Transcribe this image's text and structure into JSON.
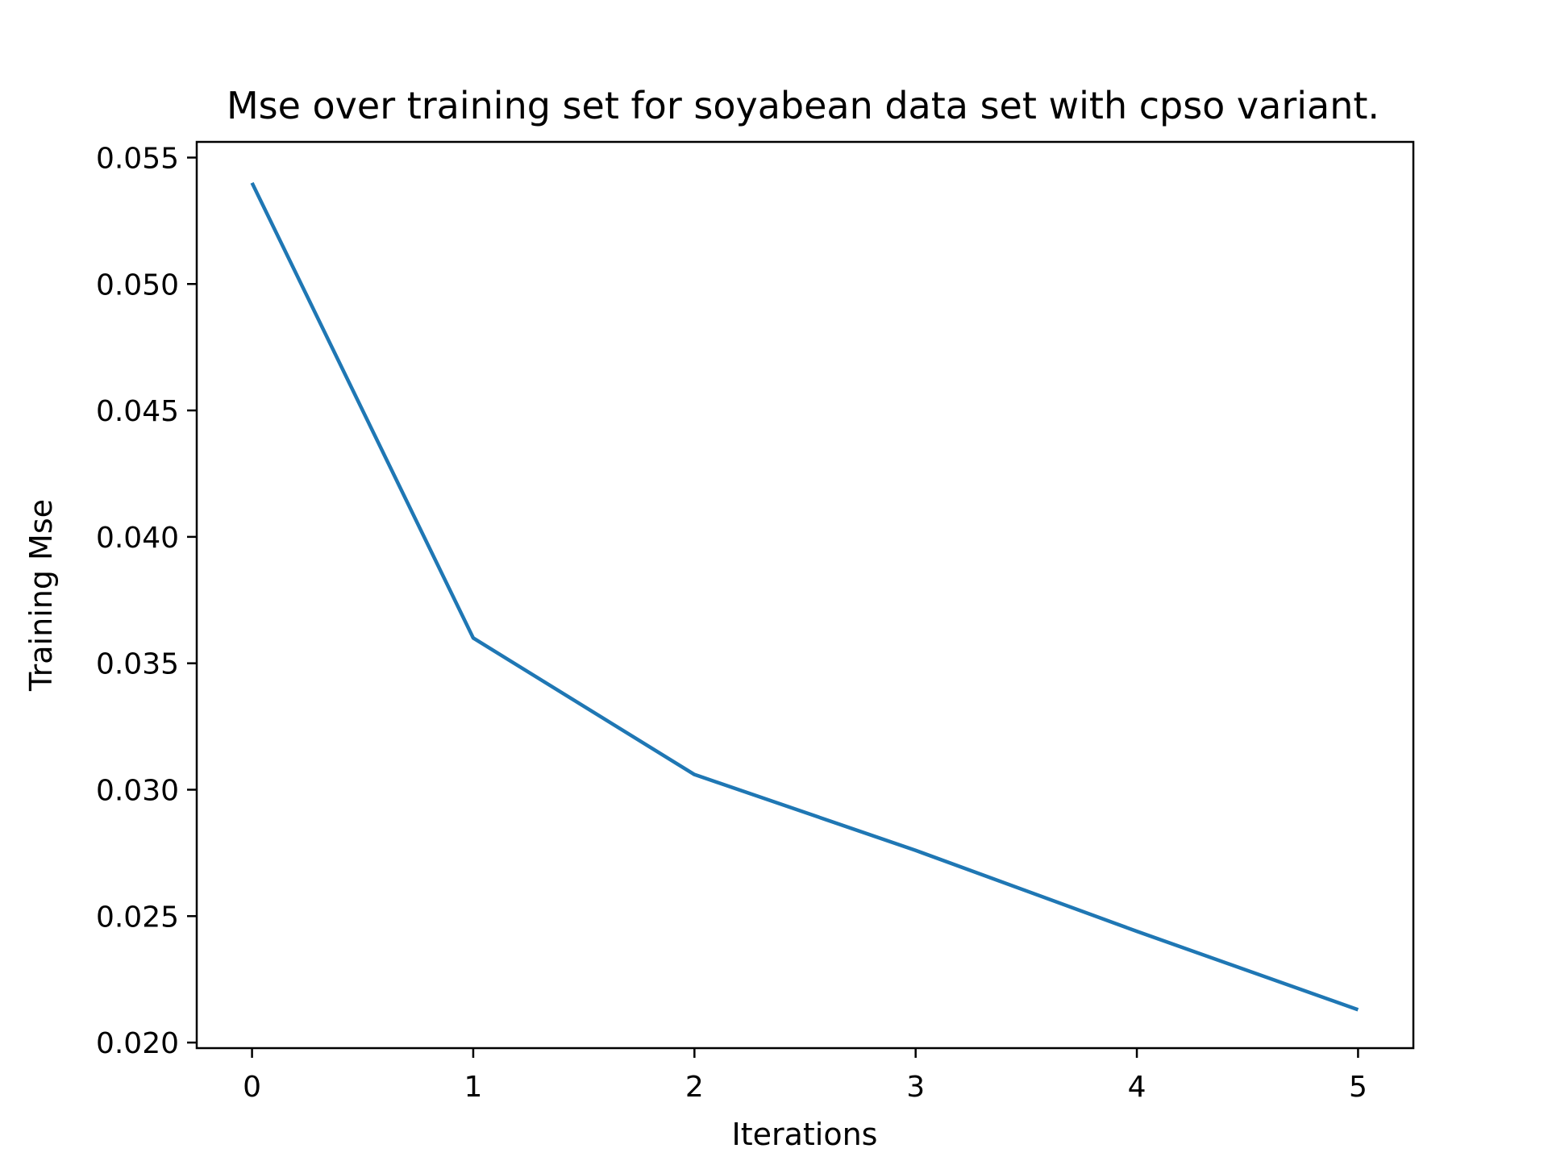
{
  "chart_data": {
    "type": "line",
    "title": "Mse over training set for soyabean data set with cpso variant.",
    "xlabel": "Iterations",
    "ylabel": "Training Mse",
    "x": [
      0,
      1,
      2,
      3,
      4,
      5
    ],
    "series": [
      {
        "values": [
          0.054,
          0.036,
          0.0306,
          0.0276,
          0.0244,
          0.0213
        ],
        "color": "#1f77b4"
      }
    ],
    "xlim": [
      -0.25,
      5.25
    ],
    "ylim": [
      0.01978,
      0.05562
    ],
    "xticks": [
      0,
      1,
      2,
      3,
      4,
      5
    ],
    "xtick_labels": [
      "0",
      "1",
      "2",
      "3",
      "4",
      "5"
    ],
    "yticks": [
      0.02,
      0.025,
      0.03,
      0.035,
      0.04,
      0.045,
      0.05,
      0.055
    ],
    "ytick_labels": [
      "0.020",
      "0.025",
      "0.030",
      "0.035",
      "0.040",
      "0.045",
      "0.050",
      "0.055"
    ],
    "grid": false,
    "legend": false
  }
}
